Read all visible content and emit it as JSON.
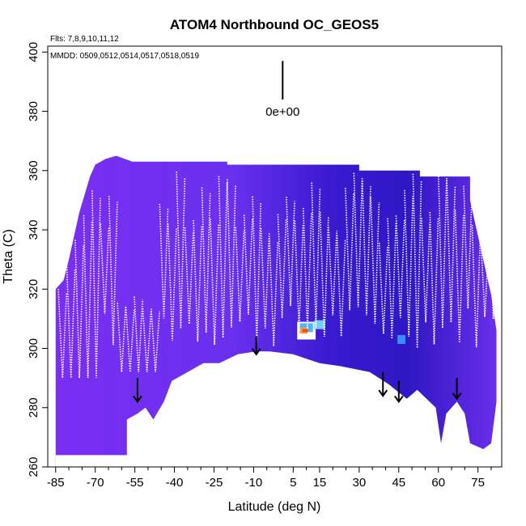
{
  "chart_data": {
    "type": "heatmap",
    "title": "ATOM4 Northbound OC_GEOS5",
    "flights_text": "Flts: 7,8,9,10,11,12",
    "dates_text": "MMDD: 0509,0512,0514,0517,0518,0519",
    "scale_label": "0e+00",
    "xlabel": "Latitude (deg N)",
    "ylabel": "Theta (C)",
    "xlim": [
      -88,
      84
    ],
    "ylim": [
      260,
      402
    ],
    "x_ticks": [
      -85,
      -70,
      -55,
      -40,
      -25,
      -10,
      5,
      15,
      30,
      45,
      60,
      75
    ],
    "x_minor_ticks": [
      -80,
      -75,
      -65,
      -60,
      -50,
      -45,
      -35,
      -30,
      -20,
      -15,
      -5,
      0,
      10,
      20,
      25,
      35,
      40,
      50,
      55,
      65,
      70,
      80
    ],
    "y_ticks": [
      260,
      280,
      300,
      320,
      340,
      360,
      380,
      400
    ],
    "field_top": [
      [
        -85,
        320
      ],
      [
        -82,
        323
      ],
      [
        -80,
        330
      ],
      [
        -78,
        338
      ],
      [
        -76,
        346
      ],
      [
        -74,
        352
      ],
      [
        -72,
        358
      ],
      [
        -70,
        362
      ],
      [
        -66,
        364
      ],
      [
        -62,
        365
      ],
      [
        -56,
        363
      ],
      [
        -20,
        363
      ],
      [
        -20,
        362
      ],
      [
        30,
        362
      ],
      [
        30,
        360
      ],
      [
        53,
        360
      ],
      [
        53,
        358
      ],
      [
        72,
        358
      ],
      [
        72,
        350
      ],
      [
        74,
        342
      ],
      [
        76,
        334
      ],
      [
        78,
        326
      ],
      [
        80,
        318
      ],
      [
        82,
        306
      ]
    ],
    "terrain_outline": [
      [
        82,
        282
      ],
      [
        80,
        268
      ],
      [
        77,
        266
      ],
      [
        72,
        268
      ],
      [
        70,
        278
      ],
      [
        67,
        282
      ],
      [
        63,
        278
      ],
      [
        61,
        268
      ],
      [
        59,
        280
      ],
      [
        52,
        286
      ],
      [
        48,
        283
      ],
      [
        41,
        288
      ],
      [
        34,
        292
      ],
      [
        23,
        294
      ],
      [
        15,
        295
      ],
      [
        5,
        298
      ],
      [
        -4,
        299
      ],
      [
        -9,
        299
      ],
      [
        -16,
        298
      ],
      [
        -23,
        295
      ],
      [
        -29,
        295
      ],
      [
        -35,
        292
      ],
      [
        -41,
        289
      ],
      [
        -44,
        282
      ],
      [
        -48,
        276
      ],
      [
        -51,
        280
      ],
      [
        -54,
        278
      ],
      [
        -58,
        276
      ],
      [
        -58,
        264
      ],
      [
        -85,
        264
      ],
      [
        -85,
        282
      ]
    ],
    "hotspots": [
      {
        "x": 10,
        "y": 306,
        "w": 7,
        "h": 6,
        "color": "#ffffff"
      },
      {
        "x": 10,
        "y": 307,
        "w": 5,
        "h": 3,
        "color": "#4fb7ff"
      },
      {
        "x": 9,
        "y": 306,
        "w": 3,
        "h": 2,
        "color": "#ff9a3c"
      },
      {
        "x": 9.5,
        "y": 306,
        "w": 2,
        "h": 1,
        "color": "#e94b1c"
      },
      {
        "x": 15,
        "y": 308,
        "w": 4,
        "h": 3,
        "color": "#6fd0ff"
      },
      {
        "x": 46,
        "y": 303,
        "w": 3,
        "h": 3,
        "color": "#3a8dff"
      }
    ],
    "arrows": [
      {
        "x": -54,
        "y_top": 290,
        "y_tip": 282
      },
      {
        "x": -9,
        "y_top": 304,
        "y_tip": 298
      },
      {
        "x": 39,
        "y_top": 292,
        "y_tip": 284
      },
      {
        "x": 45,
        "y_top": 289,
        "y_tip": 282
      },
      {
        "x": 67,
        "y_top": 290,
        "y_tip": 283
      }
    ],
    "scale_bar": {
      "x": 1,
      "y_top": 397,
      "y_bottom": 384
    },
    "colors": {
      "field": "#6b2cf0",
      "field_dark": "#2a0fb8",
      "field_light": "#8c3bff",
      "trace": "#ffffff",
      "axis": "#000000"
    }
  }
}
